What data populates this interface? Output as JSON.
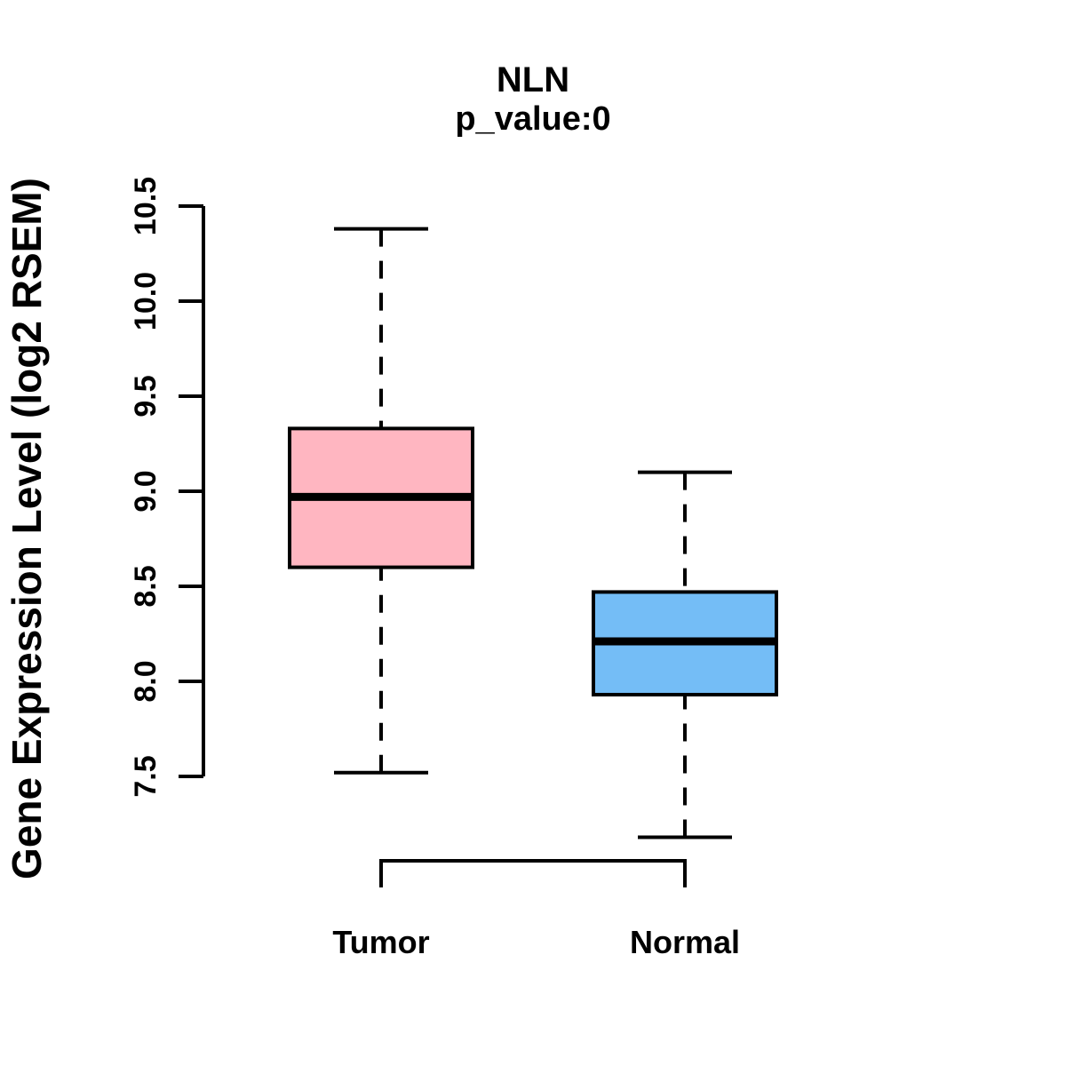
{
  "chart_data": {
    "type": "boxplot",
    "title": "NLN",
    "subtitle": "p_value:0",
    "ylabel": "Gene Expression Level (log2 RSEM)",
    "categories": [
      "Tumor",
      "Normal"
    ],
    "series": [
      {
        "name": "Tumor",
        "fill": "#FFB6C1",
        "whisker_low": 7.52,
        "q1": 8.6,
        "median": 8.97,
        "q3": 9.33,
        "whisker_high": 10.38
      },
      {
        "name": "Normal",
        "fill": "#74BDF6",
        "whisker_low": 7.18,
        "q1": 7.93,
        "median": 8.21,
        "q3": 8.47,
        "whisker_high": 9.1
      }
    ],
    "yticks": [
      "7.5",
      "8.0",
      "8.5",
      "9.0",
      "9.5",
      "10.0",
      "10.5"
    ],
    "axis_range": {
      "min": 7.5,
      "max": 10.5
    },
    "line_color": "#000000",
    "background": "#FFFFFF",
    "grid": false,
    "legend": "none"
  }
}
